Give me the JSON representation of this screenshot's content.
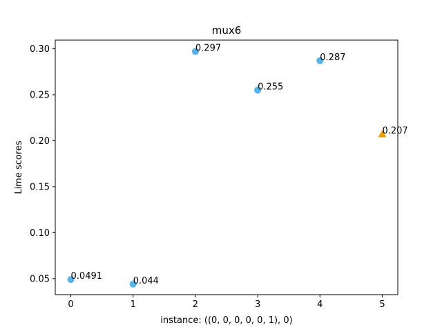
{
  "chart_data": {
    "type": "scatter",
    "title": "mux6",
    "xlabel": "instance: ((0, 0, 0, 0, 0, 1), 0)",
    "ylabel": "Lime scores",
    "xlim": [
      -0.25,
      5.25
    ],
    "ylim": [
      0.0326,
      0.3094
    ],
    "xticks": [
      0,
      1,
      2,
      3,
      4,
      5
    ],
    "xtick_labels": [
      "0",
      "1",
      "2",
      "3",
      "4",
      "5"
    ],
    "yticks": [
      0.05,
      0.1,
      0.15,
      0.2,
      0.25,
      0.3
    ],
    "ytick_labels": [
      "0.05",
      "0.10",
      "0.15",
      "0.20",
      "0.25",
      "0.30"
    ],
    "grid": false,
    "points": [
      {
        "x": 0,
        "y": 0.0491,
        "label": "0.0491",
        "marker": "circle",
        "color": "#56B4E9"
      },
      {
        "x": 1,
        "y": 0.044,
        "label": "0.044",
        "marker": "circle",
        "color": "#56B4E9"
      },
      {
        "x": 2,
        "y": 0.297,
        "label": "0.297",
        "marker": "circle",
        "color": "#56B4E9"
      },
      {
        "x": 3,
        "y": 0.255,
        "label": "0.255",
        "marker": "circle",
        "color": "#56B4E9"
      },
      {
        "x": 4,
        "y": 0.287,
        "label": "0.287",
        "marker": "circle",
        "color": "#56B4E9"
      },
      {
        "x": 5,
        "y": 0.207,
        "label": "0.207",
        "marker": "triangle",
        "color": "#E69F00"
      }
    ]
  }
}
